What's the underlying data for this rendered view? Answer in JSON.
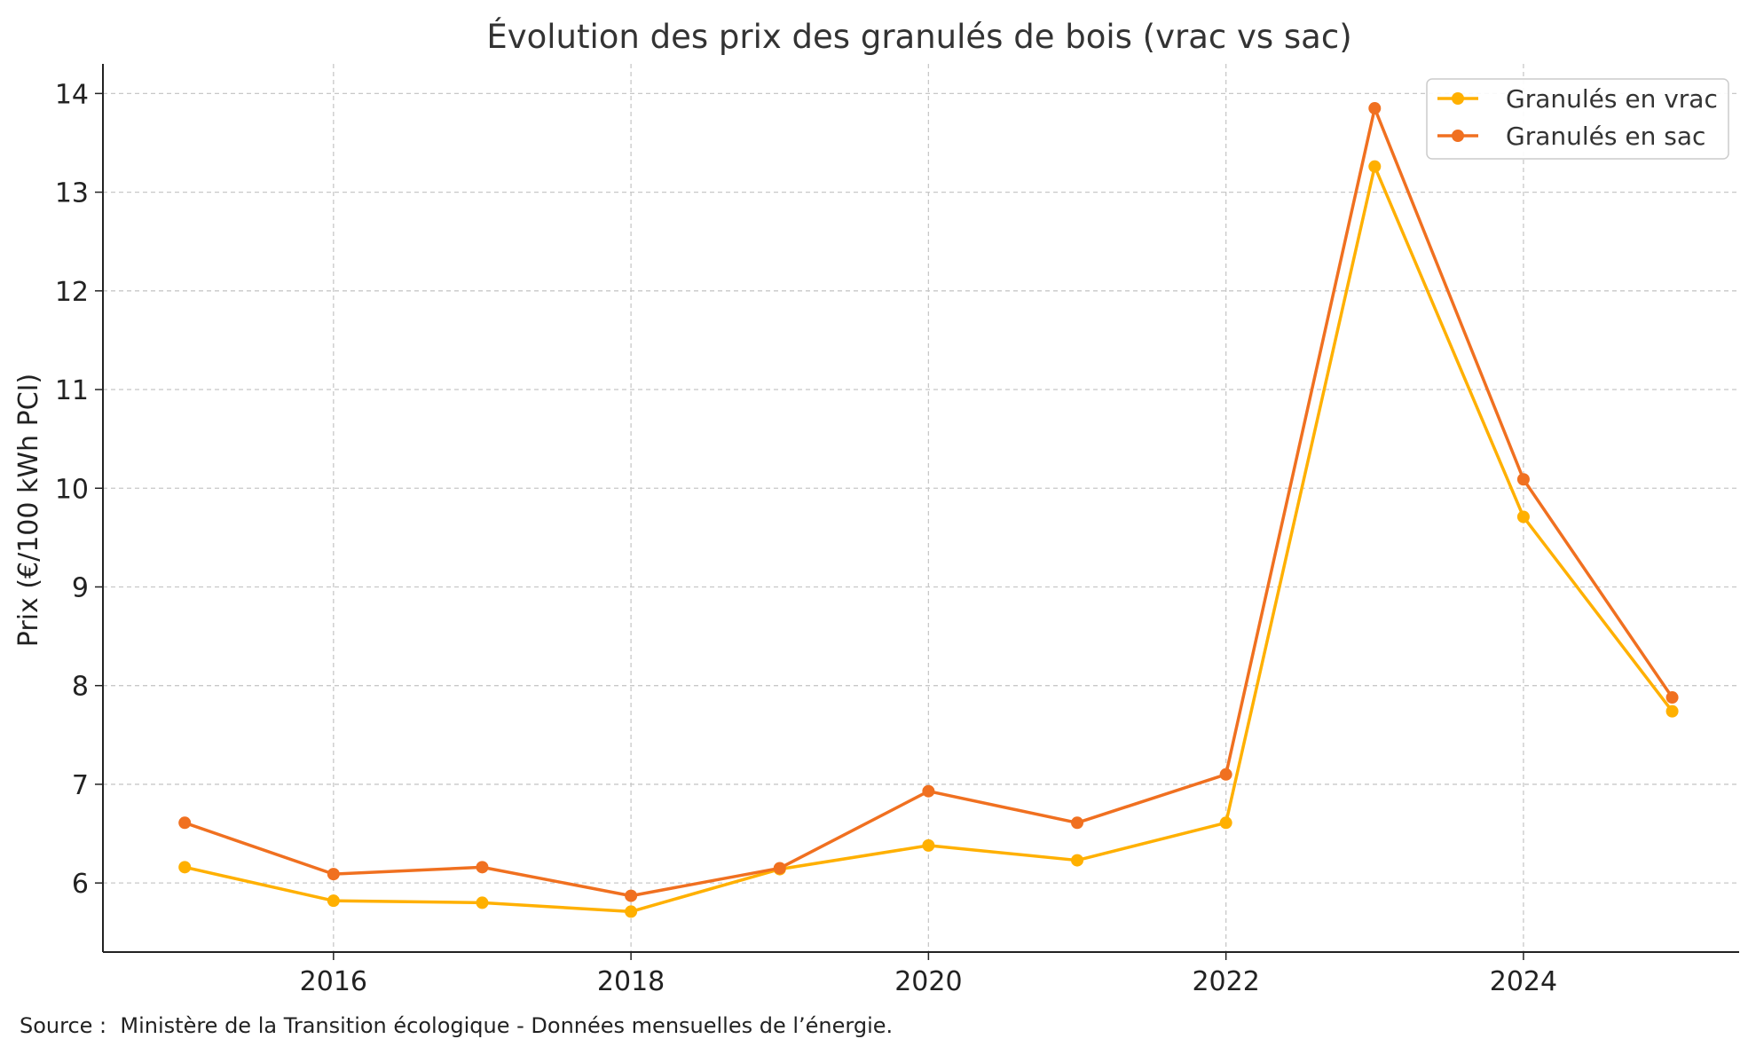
{
  "chart_data": {
    "type": "line",
    "title": "Évolution des prix des granulés de bois (vrac vs sac)",
    "xlabel": "",
    "ylabel": "Prix (€/100 kWh PCI)",
    "x": [
      "2015-01",
      "2016-01",
      "2017-01",
      "2018-01",
      "2019-01",
      "2020-01",
      "2021-01",
      "2022-01",
      "2023-01",
      "2024-01",
      "2025-01"
    ],
    "x_ticks": [
      "2016",
      "2018",
      "2020",
      "2022",
      "2024"
    ],
    "y_ticks": [
      6,
      7,
      8,
      9,
      10,
      11,
      12,
      13,
      14
    ],
    "ylim": [
      5.3,
      14.3
    ],
    "series": [
      {
        "name": "Granulés en vrac",
        "color": "#FFB000",
        "values": [
          6.16,
          5.82,
          5.8,
          5.71,
          6.14,
          6.38,
          6.23,
          6.61,
          13.26,
          9.71,
          7.74
        ]
      },
      {
        "name": "Granulés en sac",
        "color": "#F07020",
        "values": [
          6.61,
          6.09,
          6.16,
          5.87,
          6.15,
          6.93,
          6.61,
          7.1,
          13.85,
          10.09,
          7.88
        ]
      }
    ],
    "grid": true,
    "legend": "top-right"
  },
  "footer": {
    "source": "Source :  Ministère de la Transition écologique - Données mensuelles de l’énergie."
  }
}
